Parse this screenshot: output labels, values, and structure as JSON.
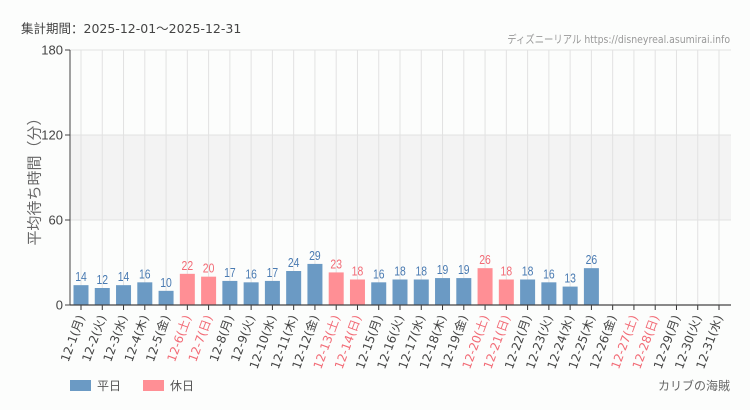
{
  "header": {
    "period": "集計期間：2025-12-01～2025-12-31",
    "credit": "ディズニーリアル https://disneyreal.asumirai.info"
  },
  "attraction": "カリブの海賊",
  "legend": [
    {
      "label": "平日",
      "color": "#6b9ac4"
    },
    {
      "label": "休日",
      "color": "#ff8f95"
    }
  ],
  "colors": {
    "weekday_bar": "#6b9ac4",
    "holiday_bar": "#ff8f95",
    "weekday_label": "#4a7bb2",
    "holiday_label": "#f26b76",
    "weekday_tick": "#444444",
    "holiday_tick": "#f26b76",
    "band": "#f3f3f3",
    "grid": "#e2e2e2"
  },
  "chart_data": {
    "type": "bar",
    "title": "",
    "xlabel": "",
    "ylabel": "平均待ち時間（分）",
    "ylim": [
      0,
      180
    ],
    "yticks": [
      0,
      60,
      120,
      180
    ],
    "band": [
      60,
      120
    ],
    "grid": true,
    "legend_position": "bottom-left",
    "categories": [
      "12-1(月)",
      "12-2(火)",
      "12-3(水)",
      "12-4(木)",
      "12-5(金)",
      "12-6(土)",
      "12-7(日)",
      "12-8(月)",
      "12-9(火)",
      "12-10(水)",
      "12-11(木)",
      "12-12(金)",
      "12-13(土)",
      "12-14(日)",
      "12-15(月)",
      "12-16(火)",
      "12-17(水)",
      "12-18(木)",
      "12-19(金)",
      "12-20(土)",
      "12-21(日)",
      "12-22(月)",
      "12-23(火)",
      "12-24(水)",
      "12-25(木)",
      "12-26(金)",
      "12-27(土)",
      "12-28(日)",
      "12-29(月)",
      "12-30(火)",
      "12-31(水)"
    ],
    "day_type": [
      "平日",
      "平日",
      "平日",
      "平日",
      "平日",
      "休日",
      "休日",
      "平日",
      "平日",
      "平日",
      "平日",
      "平日",
      "休日",
      "休日",
      "平日",
      "平日",
      "平日",
      "平日",
      "平日",
      "休日",
      "休日",
      "平日",
      "平日",
      "平日",
      "平日",
      "平日",
      "休日",
      "休日",
      "平日",
      "平日",
      "平日"
    ],
    "series": [
      {
        "name": "平均待ち時間",
        "values": [
          14,
          12,
          14,
          16,
          10,
          22,
          20,
          17,
          16,
          17,
          24,
          29,
          23,
          18,
          16,
          18,
          18,
          19,
          19,
          26,
          18,
          18,
          16,
          13,
          26,
          null,
          null,
          null,
          null,
          null,
          null
        ]
      }
    ]
  }
}
